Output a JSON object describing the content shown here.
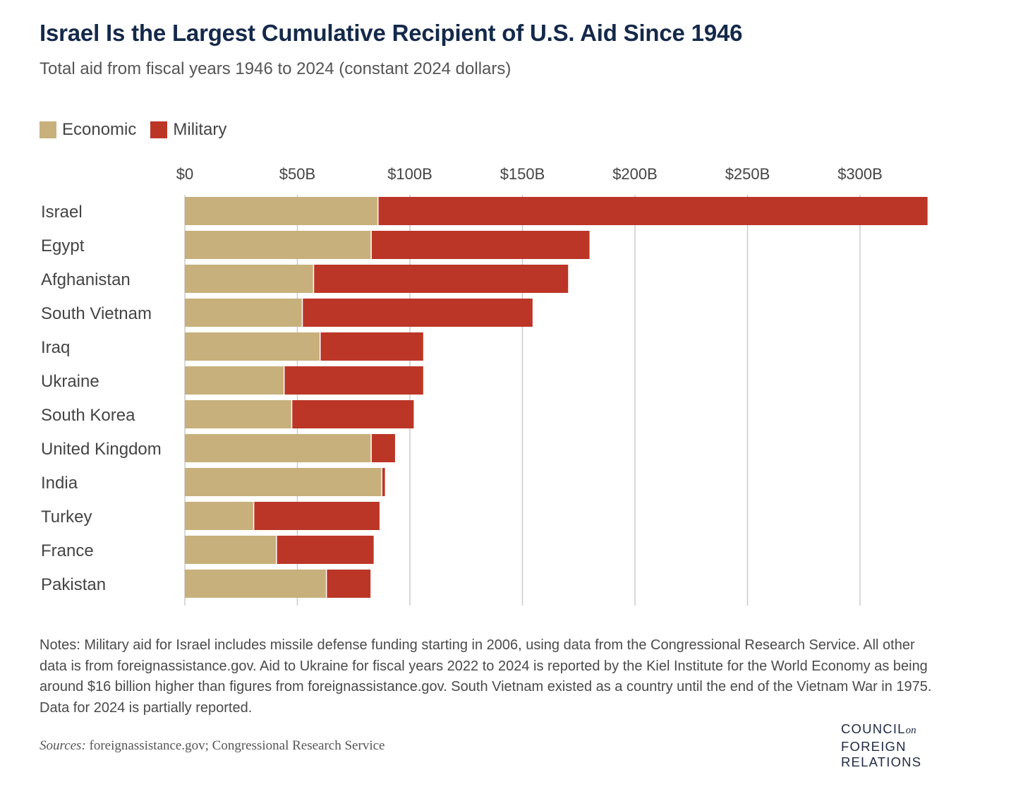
{
  "header": {
    "title": "Israel Is the Largest Cumulative Recipient of U.S. Aid Since 1946",
    "subtitle": "Total aid from fiscal years 1946 to 2024 (constant 2024 dollars)"
  },
  "colors": {
    "economic": "#c7b07b",
    "military": "#bb3627",
    "title": "#14294a",
    "grid": "#cccccc"
  },
  "legend": {
    "economic_label": "Economic",
    "military_label": "Military"
  },
  "chart_data": {
    "type": "bar",
    "orientation": "horizontal",
    "stacked": true,
    "title": "Israel Is the Largest Cumulative Recipient of U.S. Aid Since 1946",
    "subtitle": "Total aid from fiscal years 1946 to 2024 (constant 2024 dollars)",
    "xlabel": "",
    "ylabel": "",
    "xlim": [
      0,
      330
    ],
    "unit": "billions USD",
    "ticks": [
      0,
      50,
      100,
      150,
      200,
      250,
      300
    ],
    "tick_labels": [
      "$0",
      "$50B",
      "$100B",
      "$150B",
      "$200B",
      "$250B",
      "$300B"
    ],
    "grid": true,
    "legend_position": "top-left",
    "categories": [
      "Israel",
      "Egypt",
      "Afghanistan",
      "South Vietnam",
      "Iraq",
      "Ukraine",
      "South Korea",
      "United Kingdom",
      "India",
      "Turkey",
      "France",
      "Pakistan"
    ],
    "series": [
      {
        "name": "Economic",
        "values": [
          85.8,
          82.8,
          57.2,
          52.2,
          60.1,
          44.1,
          47.5,
          82.8,
          87.5,
          30.6,
          40.7,
          62.9
        ]
      },
      {
        "name": "Military",
        "values": [
          244.2,
          97.0,
          113.1,
          102.3,
          45.8,
          61.8,
          54.2,
          10.6,
          1.4,
          55.9,
          43.2,
          19.6
        ]
      }
    ]
  },
  "notes": "Notes: Military aid for Israel includes missile defense funding starting in 2006, using data from the Congressional Research Service. All other data is from foreignassistance.gov. Aid to Ukraine for fiscal years 2022 to 2024 is reported by the Kiel Institute for the World Economy as being around $16 billion higher than figures from foreignassistance.gov. South Vietnam existed as a country until the end of the Vietnam War in 1975. Data for 2024 is partially reported.",
  "sources": {
    "label": "Sources:",
    "text": " foreignassistance.gov; Congressional Research Service"
  },
  "logo": {
    "line1": "COUNCIL",
    "on": "on",
    "line2": "FOREIGN",
    "line3": "RELATIONS"
  }
}
